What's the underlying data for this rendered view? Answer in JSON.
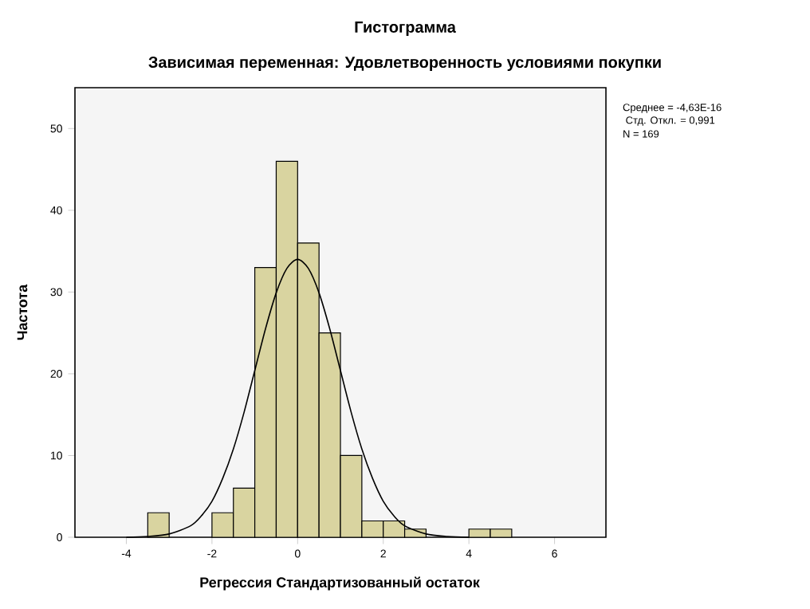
{
  "chart_data": {
    "type": "histogram",
    "title": "Гистограмма",
    "subtitle": "Зависимая переменная: Удовлетворенность условиями покупки",
    "xlabel": "Регрессия Стандартизованный остаток",
    "ylabel": "Частота",
    "bins": [
      -3.5,
      -3,
      -2.5,
      -2,
      -1.5,
      -1,
      -0.5,
      0,
      0.5,
      1,
      1.5,
      2,
      2.5,
      3,
      3.5,
      4,
      4.5,
      5
    ],
    "values": [
      3,
      0,
      0,
      3,
      6,
      33,
      46,
      36,
      25,
      10,
      2,
      2,
      1,
      0,
      0,
      1,
      1
    ],
    "color": "#d9d4a0",
    "series": [
      {
        "type": "line",
        "color": "#000000",
        "x": [
          -4,
          -3.5,
          -3,
          -2.5,
          -2.25,
          -2,
          -1.75,
          -1.5,
          -1.25,
          -1,
          -0.75,
          -0.5,
          -0.25,
          0,
          0.25,
          0.5,
          0.75,
          1,
          1.25,
          1.5,
          1.75,
          2,
          2.25,
          2.5,
          3,
          3.5,
          4
        ],
        "values": [
          0,
          0.1,
          0.4,
          1.4,
          2.6,
          4.4,
          7.2,
          10.8,
          15.3,
          20.4,
          25.5,
          29.9,
          32.9,
          34,
          32.9,
          29.9,
          25.5,
          20.4,
          15.3,
          10.8,
          7.2,
          4.4,
          2.6,
          1.4,
          0.4,
          0.1,
          0
        ]
      }
    ],
    "xlim": [
      -5.2,
      7.2
    ],
    "ylim": [
      0,
      55
    ],
    "xticks": [
      -4,
      -2,
      0,
      2,
      4,
      6
    ],
    "yticks": [
      0,
      10,
      20,
      30,
      40,
      50
    ],
    "grid": false,
    "annotations": [
      "Среднее = -4,63E-16",
      " Стд. Откл. = 0,991",
      "N = 169"
    ]
  }
}
